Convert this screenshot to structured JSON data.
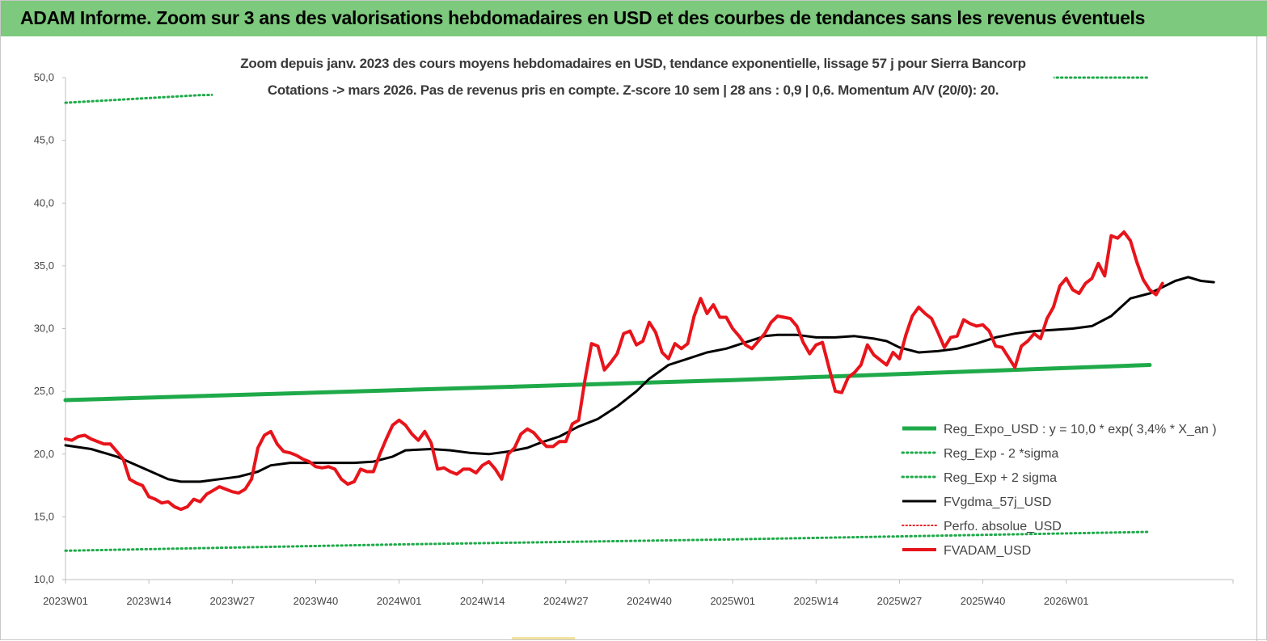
{
  "header": {
    "title": "ADAM Informe. Zoom sur 3 ans des valorisations hebdomadaires en USD et des courbes de tendances sans les revenus éventuels"
  },
  "colors": {
    "header_bg": "#7dc97d",
    "reg_expo": "#1faa4a",
    "reg_bands": "#1faa4a",
    "fvgdma": "#000000",
    "perfo": "#e8262a",
    "fvadam": "#e8141b"
  },
  "chart_data": {
    "type": "line",
    "subtitle_lines": [
      "Zoom depuis janv. 2023 des cours moyens hebdomadaires en USD, tendance exponentielle, lissage 57 j pour Sierra Bancorp",
      "Cotations -> mars 2026. Pas de revenus pris en compte. Z-score 10 sem  | 28 ans : 0,9  | 0,6. Momentum A/V (20/0): 20."
    ],
    "ylim": [
      10,
      50
    ],
    "y_ticks": [
      "10,0",
      "15,0",
      "20,0",
      "25,0",
      "30,0",
      "35,0",
      "40,0",
      "45,0",
      "50,0"
    ],
    "x_ticks": [
      "2023W01",
      "2023W14",
      "2023W27",
      "2023W40",
      "2024W01",
      "2024W14",
      "2024W27",
      "2024W40",
      "2025W01",
      "2025W14",
      "2025W27",
      "2025W40",
      "2026W01"
    ],
    "n_weeks": 169,
    "legend": [
      "Reg_Expo_USD : y = 10,0 * exp( 3,4% *  X_an )",
      "Reg_Exp - 2 *sigma",
      "Reg_Exp + 2 sigma",
      "FVgdma_57j_USD",
      "Perfo. absolue_USD",
      "FVADAM_USD"
    ],
    "series": [
      {
        "name": "Reg_Expo_USD : y = 10,0 * exp( 3,4% *  X_an )",
        "style": "solid-thick",
        "points": [
          [
            0,
            24.3
          ],
          [
            52,
            25.1
          ],
          [
            104,
            25.9
          ],
          [
            169,
            27.1
          ]
        ]
      },
      {
        "name": "Reg_Exp - 2 *sigma",
        "style": "dotted",
        "points": [
          [
            0,
            12.3
          ],
          [
            52,
            12.8
          ],
          [
            104,
            13.2
          ],
          [
            169,
            13.8
          ]
        ]
      },
      {
        "name": "Reg_Exp + 2 sigma",
        "style": "dotted",
        "points": [
          [
            0,
            48.0
          ],
          [
            21,
            48.6
          ],
          [
            140,
            50.0
          ],
          [
            169,
            50.0
          ]
        ]
      },
      {
        "name": "FVgdma_57j_USD",
        "style": "solid",
        "points": [
          [
            0,
            20.7
          ],
          [
            4,
            20.4
          ],
          [
            8,
            19.8
          ],
          [
            12,
            18.9
          ],
          [
            16,
            18.0
          ],
          [
            18,
            17.8
          ],
          [
            21,
            17.8
          ],
          [
            24,
            18.0
          ],
          [
            27,
            18.2
          ],
          [
            30,
            18.6
          ],
          [
            32,
            19.1
          ],
          [
            35,
            19.3
          ],
          [
            39,
            19.3
          ],
          [
            42,
            19.3
          ],
          [
            45,
            19.3
          ],
          [
            48,
            19.4
          ],
          [
            51,
            19.8
          ],
          [
            53,
            20.3
          ],
          [
            57,
            20.4
          ],
          [
            60,
            20.3
          ],
          [
            63,
            20.1
          ],
          [
            66,
            20.0
          ],
          [
            69,
            20.2
          ],
          [
            72,
            20.5
          ],
          [
            74,
            20.9
          ],
          [
            77,
            21.4
          ],
          [
            80,
            22.2
          ],
          [
            83,
            22.8
          ],
          [
            86,
            23.8
          ],
          [
            89,
            25.0
          ],
          [
            91,
            26.0
          ],
          [
            94,
            27.1
          ],
          [
            97,
            27.6
          ],
          [
            100,
            28.1
          ],
          [
            103,
            28.4
          ],
          [
            106,
            28.9
          ],
          [
            109,
            29.4
          ],
          [
            111,
            29.5
          ],
          [
            114,
            29.5
          ],
          [
            117,
            29.3
          ],
          [
            120,
            29.3
          ],
          [
            123,
            29.4
          ],
          [
            126,
            29.2
          ],
          [
            128,
            29.0
          ],
          [
            130,
            28.5
          ],
          [
            133,
            28.1
          ],
          [
            136,
            28.2
          ],
          [
            139,
            28.4
          ],
          [
            142,
            28.8
          ],
          [
            145,
            29.3
          ],
          [
            148,
            29.6
          ],
          [
            151,
            29.8
          ],
          [
            154,
            29.9
          ],
          [
            157,
            30.0
          ],
          [
            160,
            30.2
          ],
          [
            163,
            31.0
          ],
          [
            166,
            32.4
          ],
          [
            169,
            32.8
          ],
          [
            171,
            33.3
          ],
          [
            173,
            33.8
          ],
          [
            175,
            34.1
          ],
          [
            177,
            33.8
          ],
          [
            179,
            33.7
          ]
        ]
      },
      {
        "name": "Perfo. absolue_USD",
        "style": "dotted",
        "points": []
      },
      {
        "name": "FVADAM_USD",
        "style": "solid-thick",
        "points": [
          [
            0,
            21.2
          ],
          [
            1,
            21.1
          ],
          [
            2,
            21.4
          ],
          [
            3,
            21.5
          ],
          [
            4,
            21.2
          ],
          [
            5,
            21.0
          ],
          [
            6,
            20.8
          ],
          [
            7,
            20.8
          ],
          [
            8,
            20.2
          ],
          [
            9,
            19.6
          ],
          [
            10,
            18.0
          ],
          [
            11,
            17.7
          ],
          [
            12,
            17.5
          ],
          [
            13,
            16.6
          ],
          [
            14,
            16.4
          ],
          [
            15,
            16.1
          ],
          [
            16,
            16.2
          ],
          [
            17,
            15.8
          ],
          [
            18,
            15.6
          ],
          [
            19,
            15.8
          ],
          [
            20,
            16.4
          ],
          [
            21,
            16.2
          ],
          [
            22,
            16.8
          ],
          [
            23,
            17.1
          ],
          [
            24,
            17.4
          ],
          [
            25,
            17.2
          ],
          [
            26,
            17.0
          ],
          [
            27,
            16.9
          ],
          [
            28,
            17.2
          ],
          [
            29,
            18.0
          ],
          [
            30,
            20.5
          ],
          [
            31,
            21.5
          ],
          [
            32,
            21.8
          ],
          [
            33,
            20.8
          ],
          [
            34,
            20.2
          ],
          [
            35,
            20.1
          ],
          [
            36,
            19.9
          ],
          [
            37,
            19.6
          ],
          [
            38,
            19.4
          ],
          [
            39,
            19.0
          ],
          [
            40,
            18.9
          ],
          [
            41,
            19.0
          ],
          [
            42,
            18.8
          ],
          [
            43,
            18.0
          ],
          [
            44,
            17.6
          ],
          [
            45,
            17.8
          ],
          [
            46,
            18.8
          ],
          [
            47,
            18.6
          ],
          [
            48,
            18.6
          ],
          [
            49,
            20.0
          ],
          [
            50,
            21.2
          ],
          [
            51,
            22.3
          ],
          [
            52,
            22.7
          ],
          [
            53,
            22.3
          ],
          [
            54,
            21.6
          ],
          [
            55,
            21.1
          ],
          [
            56,
            21.8
          ],
          [
            57,
            20.9
          ],
          [
            58,
            18.8
          ],
          [
            59,
            18.9
          ],
          [
            60,
            18.6
          ],
          [
            61,
            18.4
          ],
          [
            62,
            18.8
          ],
          [
            63,
            18.8
          ],
          [
            64,
            18.5
          ],
          [
            65,
            19.1
          ],
          [
            66,
            19.4
          ],
          [
            67,
            18.8
          ],
          [
            68,
            18.0
          ],
          [
            69,
            20.0
          ],
          [
            70,
            20.5
          ],
          [
            71,
            21.6
          ],
          [
            72,
            22.0
          ],
          [
            73,
            21.7
          ],
          [
            74,
            21.1
          ],
          [
            75,
            20.6
          ],
          [
            76,
            20.6
          ],
          [
            77,
            21.0
          ],
          [
            78,
            21.0
          ],
          [
            79,
            22.4
          ],
          [
            80,
            22.7
          ],
          [
            81,
            26.0
          ],
          [
            82,
            28.8
          ],
          [
            83,
            28.6
          ],
          [
            84,
            26.7
          ],
          [
            85,
            27.3
          ],
          [
            86,
            28.0
          ],
          [
            87,
            29.6
          ],
          [
            88,
            29.8
          ],
          [
            89,
            28.7
          ],
          [
            90,
            29.0
          ],
          [
            91,
            30.5
          ],
          [
            92,
            29.7
          ],
          [
            93,
            28.1
          ],
          [
            94,
            27.6
          ],
          [
            95,
            28.8
          ],
          [
            96,
            28.4
          ],
          [
            97,
            28.8
          ],
          [
            98,
            31.0
          ],
          [
            99,
            32.4
          ],
          [
            100,
            31.2
          ],
          [
            101,
            31.9
          ],
          [
            102,
            30.9
          ],
          [
            103,
            30.9
          ],
          [
            104,
            30.0
          ],
          [
            105,
            29.4
          ],
          [
            106,
            28.7
          ],
          [
            107,
            28.4
          ],
          [
            108,
            29.0
          ],
          [
            109,
            29.6
          ],
          [
            110,
            30.5
          ],
          [
            111,
            31.0
          ],
          [
            112,
            30.9
          ],
          [
            113,
            30.8
          ],
          [
            114,
            30.2
          ],
          [
            115,
            28.9
          ],
          [
            116,
            28.0
          ],
          [
            117,
            28.7
          ],
          [
            118,
            28.9
          ],
          [
            119,
            26.9
          ],
          [
            120,
            25.0
          ],
          [
            121,
            24.9
          ],
          [
            122,
            26.1
          ],
          [
            123,
            26.5
          ],
          [
            124,
            27.1
          ],
          [
            125,
            28.7
          ],
          [
            126,
            27.9
          ],
          [
            127,
            27.5
          ],
          [
            128,
            27.1
          ],
          [
            129,
            28.1
          ],
          [
            130,
            27.6
          ],
          [
            131,
            29.5
          ],
          [
            132,
            31.0
          ],
          [
            133,
            31.7
          ],
          [
            134,
            31.2
          ],
          [
            135,
            30.8
          ],
          [
            136,
            29.7
          ],
          [
            137,
            28.5
          ],
          [
            138,
            29.3
          ],
          [
            139,
            29.4
          ],
          [
            140,
            30.7
          ],
          [
            141,
            30.4
          ],
          [
            142,
            30.2
          ],
          [
            143,
            30.3
          ],
          [
            144,
            29.8
          ],
          [
            145,
            28.6
          ],
          [
            146,
            28.5
          ],
          [
            147,
            27.7
          ],
          [
            148,
            26.9
          ],
          [
            149,
            28.6
          ],
          [
            150,
            29.0
          ],
          [
            151,
            29.6
          ],
          [
            152,
            29.2
          ],
          [
            153,
            30.8
          ],
          [
            154,
            31.7
          ],
          [
            155,
            33.4
          ],
          [
            156,
            34.0
          ],
          [
            157,
            33.1
          ],
          [
            158,
            32.8
          ],
          [
            159,
            33.6
          ],
          [
            160,
            34.0
          ],
          [
            161,
            35.2
          ],
          [
            162,
            34.2
          ],
          [
            163,
            37.4
          ],
          [
            164,
            37.2
          ],
          [
            165,
            37.7
          ],
          [
            166,
            37.0
          ],
          [
            167,
            35.3
          ],
          [
            168,
            33.9
          ],
          [
            169,
            33.1
          ],
          [
            170,
            32.7
          ],
          [
            171,
            33.6
          ]
        ]
      }
    ]
  }
}
